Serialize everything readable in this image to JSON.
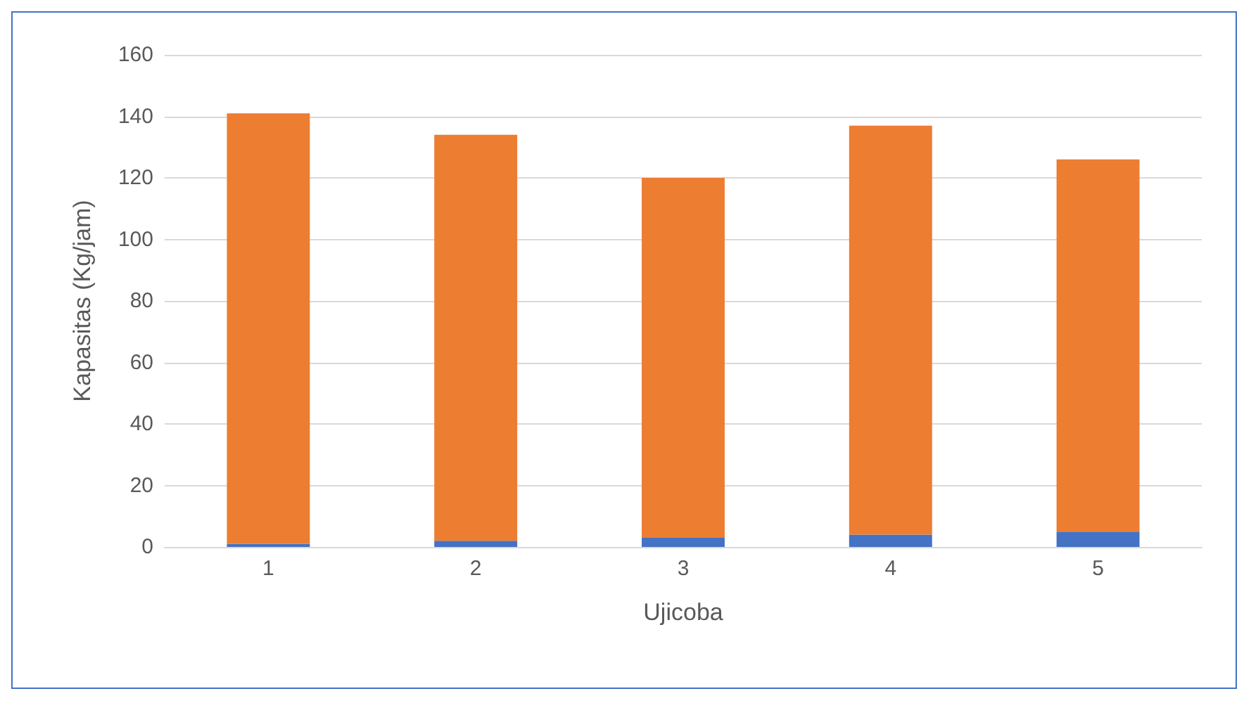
{
  "chart_data": {
    "type": "bar",
    "stacked": true,
    "xlabel": "Ujicoba",
    "ylabel": "Kapasitas (Kg/jam)",
    "categories": [
      "1",
      "2",
      "3",
      "4",
      "5"
    ],
    "series": [
      {
        "color": "#4472c4",
        "values": [
          1,
          2,
          3,
          4,
          5
        ]
      },
      {
        "color": "#ed7d31",
        "values": [
          140,
          132,
          117,
          133,
          121
        ]
      }
    ],
    "ylim": [
      0,
      160
    ],
    "yticks": [
      0,
      20,
      40,
      60,
      80,
      100,
      120,
      140,
      160
    ],
    "grid": "y"
  }
}
